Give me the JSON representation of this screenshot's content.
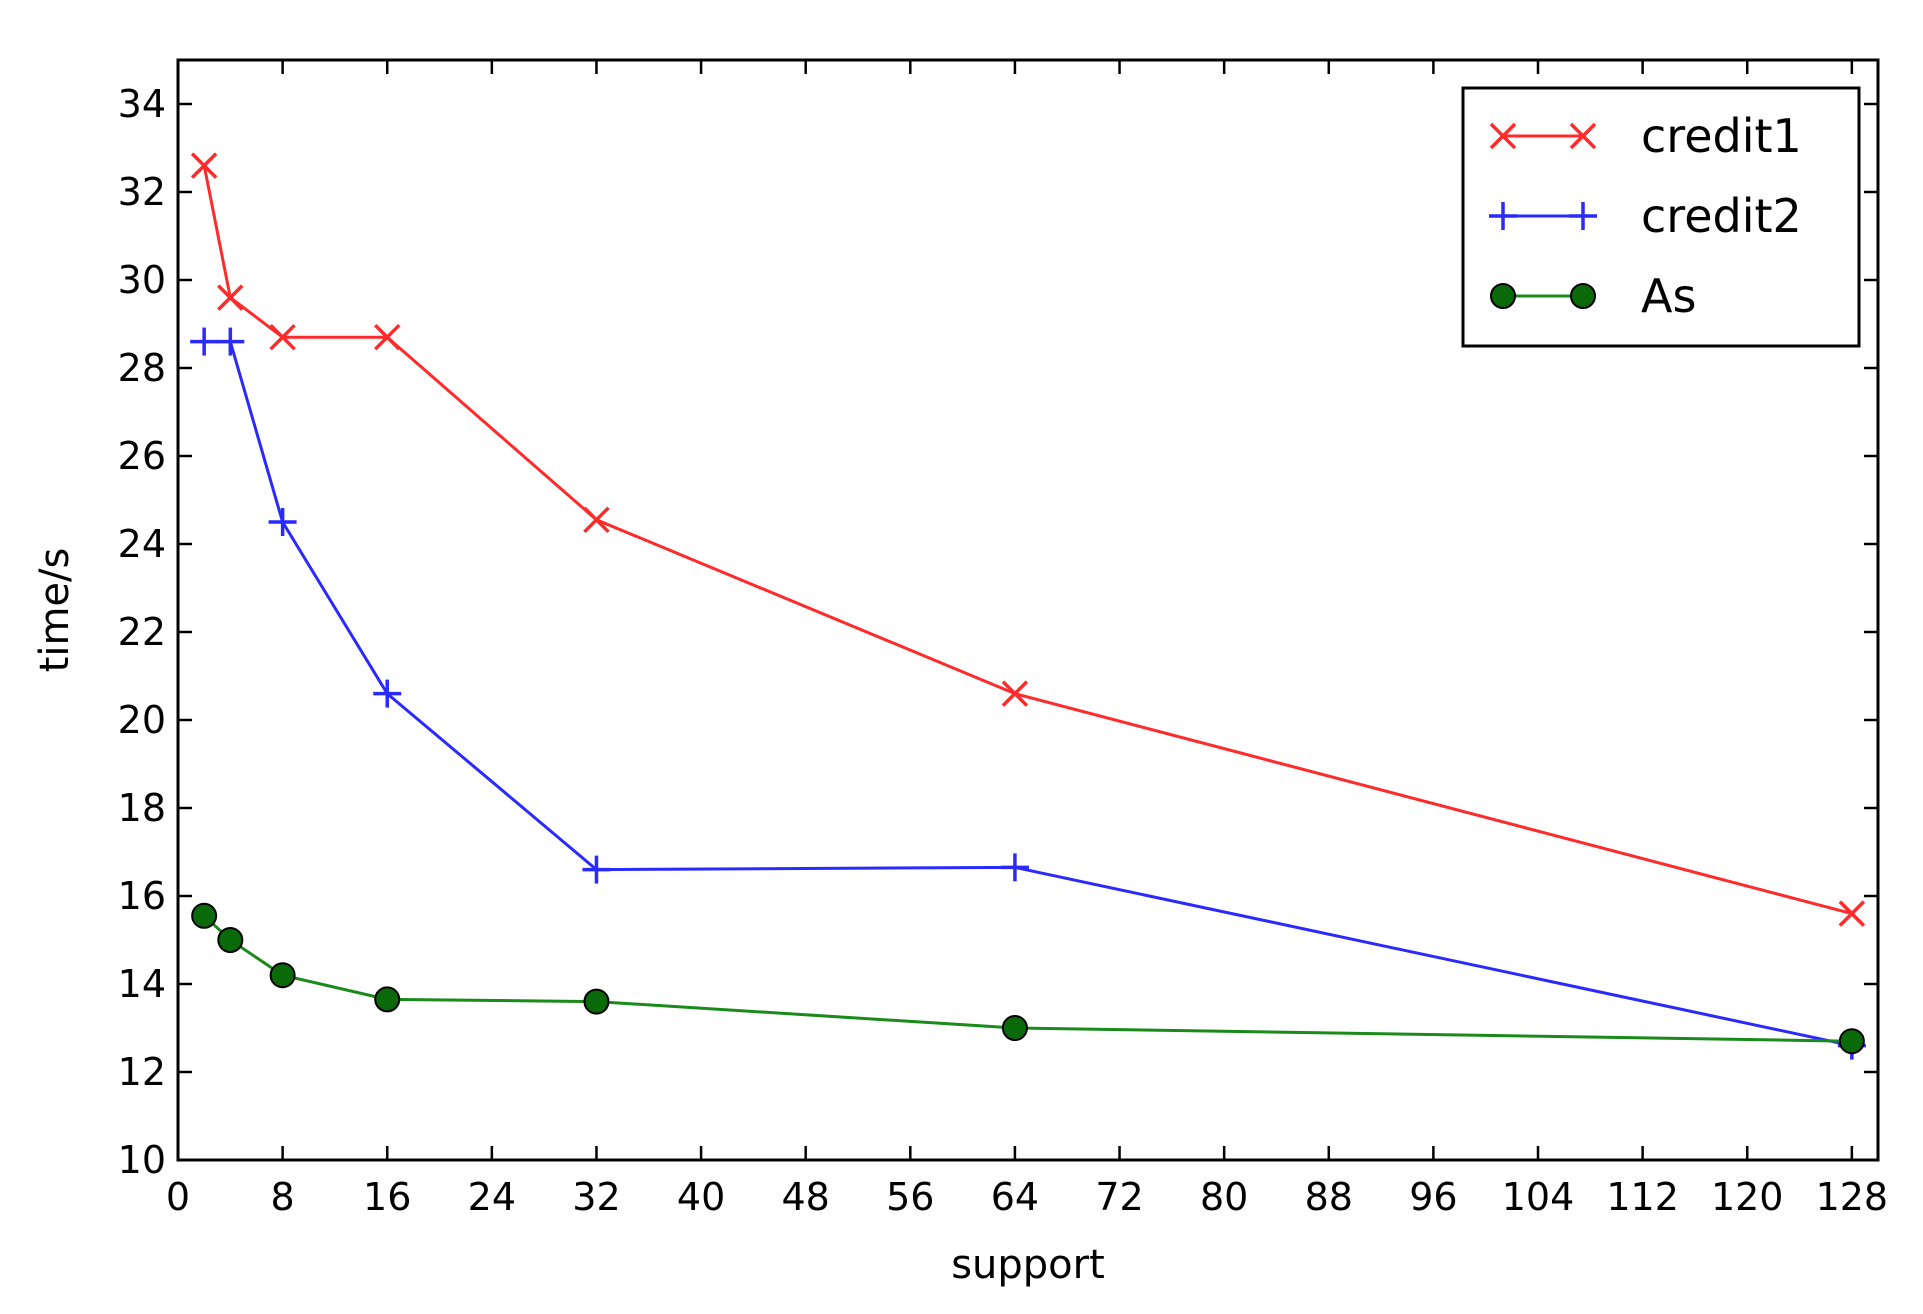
{
  "chart_data": {
    "type": "line",
    "xlabel": "support",
    "ylabel": "time/s",
    "xlim": [
      0,
      130
    ],
    "ylim": [
      10,
      35
    ],
    "xticks": [
      0,
      8,
      16,
      24,
      32,
      40,
      48,
      56,
      64,
      72,
      80,
      88,
      96,
      104,
      112,
      120,
      128
    ],
    "yticks": [
      10,
      12,
      14,
      16,
      18,
      20,
      22,
      24,
      26,
      28,
      30,
      32,
      34
    ],
    "grid": false,
    "legend_position": "top-right",
    "series": [
      {
        "name": "credit1",
        "color": "#ff2a2a",
        "marker": "x",
        "x": [
          2,
          4,
          8,
          16,
          32,
          64,
          128
        ],
        "y": [
          32.6,
          29.6,
          28.7,
          28.7,
          24.55,
          20.6,
          15.6
        ]
      },
      {
        "name": "credit2",
        "color": "#2a2aff",
        "marker": "plus",
        "x": [
          2,
          4,
          8,
          16,
          32,
          64,
          128
        ],
        "y": [
          28.6,
          28.6,
          24.5,
          20.6,
          16.6,
          16.65,
          12.6
        ]
      },
      {
        "name": "As",
        "color": "#1a8a1a",
        "marker_fill": "#0a6a0a",
        "marker": "circle",
        "x": [
          2,
          4,
          8,
          16,
          32,
          64,
          128
        ],
        "y": [
          15.55,
          15.0,
          14.2,
          13.65,
          13.6,
          13.0,
          12.7
        ]
      }
    ]
  }
}
